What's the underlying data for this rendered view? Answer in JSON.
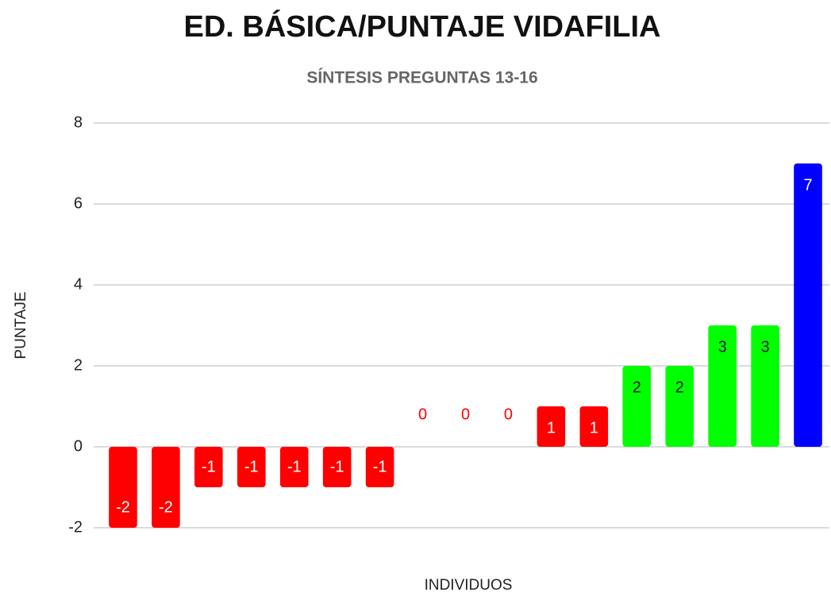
{
  "chart_data": {
    "type": "bar",
    "title": "ED. BÁSICA/PUNTAJE VIDAFILIA",
    "subtitle": "SÍNTESIS PREGUNTAS 13-16",
    "x_label": "INDIVIDUOS",
    "y_label": "PUNTAJE",
    "categories": [
      null,
      null,
      null,
      null,
      null,
      null,
      null,
      null,
      null,
      null,
      null,
      null,
      null,
      null,
      null,
      null,
      null
    ],
    "values": [
      -2,
      -2,
      -1,
      -1,
      -1,
      -1,
      -1,
      0,
      0,
      0,
      1,
      1,
      2,
      2,
      3,
      3,
      7
    ],
    "colors": [
      "#ff0000",
      "#ff0000",
      "#ff0000",
      "#ff0000",
      "#ff0000",
      "#ff0000",
      "#ff0000",
      "#ff0000",
      "#ff0000",
      "#ff0000",
      "#ff0000",
      "#ff0000",
      "#00ff00",
      "#00ff00",
      "#00ff00",
      "#00ff00",
      "#0000ff"
    ],
    "label_colors": [
      "#ffffff",
      "#ffffff",
      "#ffffff",
      "#ffffff",
      "#ffffff",
      "#ffffff",
      "#ffffff",
      "#ff0000",
      "#ff0000",
      "#ff0000",
      "#ffffff",
      "#ffffff",
      "#1a1a1a",
      "#1a1a1a",
      "#1a1a1a",
      "#1a1a1a",
      "#ffffff"
    ],
    "ylim": [
      -2,
      8
    ],
    "yticks": [
      -2,
      0,
      2,
      4,
      6,
      8
    ],
    "grid": true
  }
}
